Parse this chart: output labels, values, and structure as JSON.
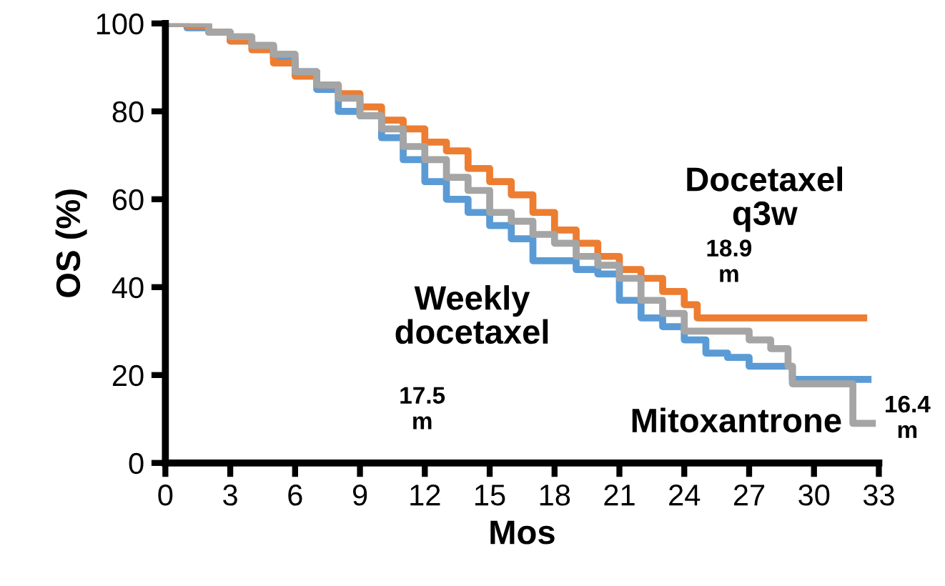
{
  "chart_data": {
    "type": "step",
    "xlabel": "Mos",
    "ylabel": "OS (%)",
    "xlim": [
      0,
      33
    ],
    "ylim": [
      0,
      100
    ],
    "xticks": [
      0,
      3,
      6,
      9,
      12,
      15,
      18,
      21,
      24,
      27,
      30,
      33
    ],
    "yticks": [
      0,
      20,
      40,
      60,
      80,
      100
    ],
    "grid": false,
    "legend": false,
    "marker": "none",
    "line_style": "solid",
    "series": [
      {
        "name": "Weekly docetaxel",
        "color": "#5b9bd5",
        "x": [
          0,
          1,
          2,
          3,
          4,
          5,
          6,
          7,
          8,
          9,
          10,
          11,
          12,
          13,
          14,
          15,
          16,
          17,
          18,
          19,
          20,
          21,
          22,
          23,
          24,
          25,
          26,
          27,
          28,
          29,
          32.5
        ],
        "values": [
          100,
          99,
          98,
          96,
          95,
          92,
          89,
          85,
          80,
          79,
          74,
          69,
          64,
          60,
          57,
          54,
          51,
          46,
          46,
          44,
          43,
          37,
          33,
          31,
          28,
          25,
          24,
          22,
          22,
          19,
          19
        ]
      },
      {
        "name": "Docetaxel q3w",
        "color": "#ed7d31",
        "x": [
          0,
          1,
          2,
          3,
          4,
          5,
          6,
          7,
          8,
          9,
          10,
          11,
          12,
          13,
          14,
          15,
          16,
          17,
          18,
          19,
          20,
          21,
          22,
          23,
          24,
          24.6,
          32.3
        ],
        "values": [
          100,
          99.5,
          98,
          96,
          94,
          91,
          88,
          86,
          84,
          81,
          78,
          76,
          73,
          71,
          67,
          64,
          61,
          57,
          53,
          50,
          47,
          44,
          42,
          39,
          36,
          33,
          33
        ]
      },
      {
        "name": "Mitoxantrone",
        "color": "#a5a5a5",
        "x": [
          0,
          1,
          2,
          3,
          4,
          5,
          6,
          7,
          8,
          9,
          10,
          11,
          12,
          13,
          14,
          15,
          16,
          17,
          18,
          19,
          20,
          21,
          22,
          23,
          24,
          25,
          26,
          27,
          28,
          28.8,
          29,
          31.8,
          32.7
        ],
        "values": [
          100,
          100,
          98,
          97,
          95,
          93,
          89,
          86,
          83,
          79,
          76,
          72,
          69,
          65,
          62,
          57,
          55,
          52,
          50,
          47,
          45,
          42,
          37,
          34,
          30,
          30,
          30,
          28,
          26,
          22,
          18,
          9,
          9
        ]
      }
    ],
    "annotations": [
      "17.5\nm",
      "18.9\nm",
      "16.4\nm"
    ]
  }
}
